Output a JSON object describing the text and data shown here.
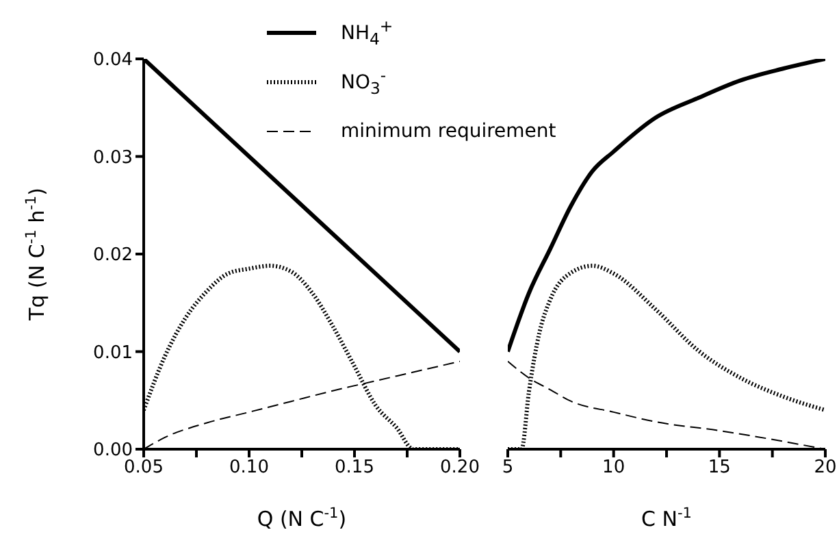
{
  "chart_data": [
    {
      "type": "line",
      "ylabel": "Tq (N C$^{-1}$ h$^{-1}$)",
      "xlabel": "Q (N C$^{-1}$)",
      "legend": "top",
      "xlim": [
        0.05,
        0.2
      ],
      "xticks": [
        {
          "value": 0.05,
          "label": "0.05"
        },
        {
          "value": 0.075,
          "label": null
        },
        {
          "value": 0.1,
          "label": "0.10"
        },
        {
          "value": 0.125,
          "label": null
        },
        0.15,
        {
          "value": 0.175,
          "label": null
        },
        {
          "value": 0.2,
          "label": "0.20"
        }
      ],
      "ylim": [
        0,
        0.04
      ],
      "yticks": [
        {
          "value": 0,
          "label": "0.00"
        },
        0.01,
        0.02,
        0.03,
        0.04
      ],
      "series": [
        {
          "name": "NH$_{4}$$^{+}$",
          "color": "#000000",
          "line_style": "solid",
          "x": [
            0.05,
            0.2
          ],
          "values": [
            0.04,
            0.01
          ]
        },
        {
          "name": "NO$_{3}$$^{-}$",
          "color": "#000000",
          "line_style": "dotted",
          "x": [
            0.05,
            0.06,
            0.07,
            0.08,
            0.09,
            0.1,
            0.11,
            0.12,
            0.13,
            0.14,
            0.15,
            0.16,
            0.17,
            0.178,
            0.19,
            0.2
          ],
          "values": [
            0.004,
            0.0095,
            0.0135,
            0.0162,
            0.018,
            0.0185,
            0.0188,
            0.0182,
            0.016,
            0.0125,
            0.0085,
            0.0045,
            0.0022,
            0,
            0,
            0
          ]
        },
        {
          "name": "minimum requirement",
          "color": "#000000",
          "line_style": "dashed",
          "x": [
            0.05,
            0.06,
            0.08,
            0.1,
            0.12,
            0.14,
            0.16,
            0.18,
            0.2
          ],
          "values": [
            0,
            0.0012,
            0.0027,
            0.0038,
            0.0049,
            0.006,
            0.007,
            0.008,
            0.009
          ]
        }
      ]
    },
    {
      "type": "line",
      "xlabel": "C N$^{-1}$",
      "tick_labels": "x",
      "xlim": [
        5,
        20
      ],
      "xticks": [
        5,
        {
          "value": 7.5,
          "label": null
        },
        10,
        {
          "value": 12.5,
          "label": null
        },
        15,
        {
          "value": 17.5,
          "label": null
        },
        20
      ],
      "ylim": [
        0,
        0.04
      ],
      "yticks": [
        0,
        0.01,
        0.02,
        0.03,
        0.04
      ],
      "series": [
        {
          "color": "#000000",
          "line_style": "solid",
          "x": [
            5,
            6,
            7,
            8,
            9,
            10,
            12,
            14,
            16,
            18,
            20
          ],
          "values": [
            0.01,
            0.016,
            0.0205,
            0.025,
            0.0285,
            0.0305,
            0.034,
            0.036,
            0.0378,
            0.039,
            0.04
          ]
        },
        {
          "color": "#000000",
          "line_style": "dotted",
          "x": [
            5,
            5.65,
            6,
            6.5,
            7,
            8,
            9,
            10,
            12,
            14,
            16,
            18,
            20
          ],
          "values": [
            0,
            0,
            0.0059,
            0.012,
            0.0153,
            0.0181,
            0.0188,
            0.018,
            0.0143,
            0.0101,
            0.0073,
            0.0054,
            0.004
          ]
        },
        {
          "color": "#000000",
          "line_style": "dashed",
          "x": [
            5,
            6,
            7,
            8,
            10,
            12,
            15,
            20
          ],
          "values": [
            0.009,
            0.0073,
            0.0061,
            0.0049,
            0.0038,
            0.0028,
            0.0019,
            0
          ]
        }
      ]
    }
  ]
}
